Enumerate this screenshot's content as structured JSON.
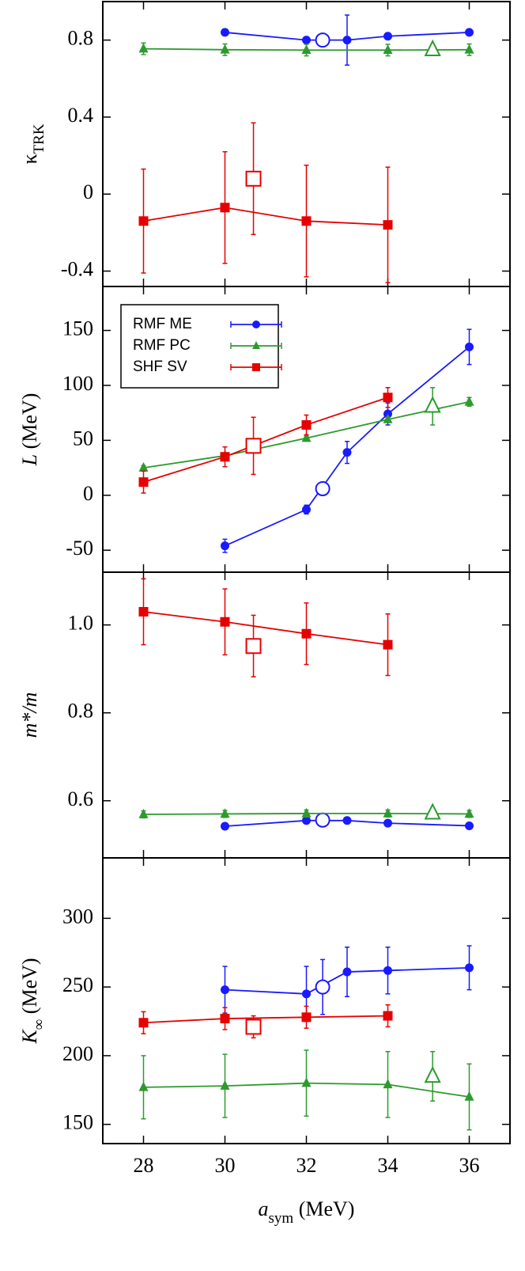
{
  "chart_data": [
    {
      "type": "line",
      "ylabel_parts": [
        {
          "text": "κ",
          "sub": false,
          "italic": false
        },
        {
          "text": "TRK",
          "sub": true,
          "italic": false
        }
      ],
      "xlim": [
        27,
        37
      ],
      "xticks": [
        28,
        30,
        32,
        34,
        36
      ],
      "ylim": [
        -0.48,
        1.0
      ],
      "yticks": [
        -0.4,
        0,
        0.4,
        0.8
      ],
      "series": [
        {
          "color": "#1a1aff",
          "marker": "circle",
          "x": [
            30,
            32,
            33,
            34,
            36
          ],
          "values": [
            0.84,
            0.8,
            0.8,
            0.82,
            0.84
          ],
          "errors": [
            0,
            0,
            0.13,
            0,
            0
          ],
          "open": {
            "x": 32.4,
            "y": 0.8,
            "error": 0
          }
        },
        {
          "color": "#2e9a2e",
          "marker": "triangle",
          "x": [
            28,
            30,
            32,
            34,
            36
          ],
          "values": [
            0.755,
            0.75,
            0.748,
            0.748,
            0.75
          ],
          "errors": [
            0.03,
            0.03,
            0.03,
            0.03,
            0.03
          ],
          "open": {
            "x": 35.1,
            "y": 0.75,
            "error": 0
          }
        },
        {
          "color": "#e60000",
          "marker": "square",
          "x": [
            28,
            30,
            32,
            34
          ],
          "values": [
            -0.14,
            -0.07,
            -0.14,
            -0.16
          ],
          "errors": [
            0.27,
            0.29,
            0.29,
            0.3
          ],
          "open": {
            "x": 30.7,
            "y": 0.08,
            "error": 0.29
          }
        }
      ]
    },
    {
      "type": "line",
      "ylabel_parts": [
        {
          "text": "L",
          "sub": false,
          "italic": true
        },
        {
          "text": "  (MeV)",
          "sub": false,
          "italic": false
        }
      ],
      "xlim": [
        27,
        37
      ],
      "xticks": [
        28,
        30,
        32,
        34,
        36
      ],
      "ylim": [
        -70,
        190
      ],
      "yticks": [
        -50,
        0,
        50,
        100,
        150
      ],
      "legend": "upper left",
      "series": [
        {
          "name": "RMF ME",
          "color": "#1a1aff",
          "marker": "circle",
          "x": [
            30,
            32,
            33,
            34,
            36
          ],
          "values": [
            -46,
            -13,
            39,
            74,
            135
          ],
          "errors": [
            6,
            4,
            10,
            10,
            16
          ],
          "open": {
            "x": 32.4,
            "y": 6,
            "error": 6
          }
        },
        {
          "name": "RMF PC",
          "color": "#2e9a2e",
          "marker": "triangle",
          "x": [
            28,
            30,
            32,
            34,
            36
          ],
          "values": [
            25,
            36,
            52,
            69,
            85
          ],
          "errors": [
            2,
            2,
            2,
            2,
            4
          ],
          "open": {
            "x": 35.1,
            "y": 81,
            "error": 17
          }
        },
        {
          "name": "SHF SV",
          "color": "#e60000",
          "marker": "square",
          "x": [
            28,
            30,
            32,
            34
          ],
          "values": [
            12,
            35,
            64,
            89
          ],
          "errors": [
            10,
            9,
            9,
            9
          ],
          "open": {
            "x": 30.7,
            "y": 45,
            "error": 26
          }
        }
      ]
    },
    {
      "type": "line",
      "ylabel_parts": [
        {
          "text": "m*/m",
          "sub": false,
          "italic": true
        }
      ],
      "xlim": [
        27,
        37
      ],
      "xticks": [
        28,
        30,
        32,
        34,
        36
      ],
      "ylim": [
        0.47,
        1.12
      ],
      "yticks": [
        0.6,
        0.8,
        {
          "value": 1,
          "label": "1.0"
        }
      ],
      "series": [
        {
          "color": "#1a1aff",
          "marker": "circle",
          "x": [
            30,
            32,
            33,
            34,
            36
          ],
          "values": [
            0.542,
            0.555,
            0.555,
            0.549,
            0.543
          ],
          "errors": [
            0,
            0,
            0,
            0,
            0
          ],
          "open": {
            "x": 32.4,
            "y": 0.556,
            "error": 0
          }
        },
        {
          "color": "#2e9a2e",
          "marker": "triangle",
          "x": [
            28,
            30,
            32,
            34,
            36
          ],
          "values": [
            0.569,
            0.57,
            0.571,
            0.571,
            0.57
          ],
          "errors": [
            0.008,
            0.008,
            0.008,
            0.008,
            0.008
          ],
          "open": {
            "x": 35.1,
            "y": 0.572,
            "error": 0
          }
        },
        {
          "color": "#e60000",
          "marker": "square",
          "x": [
            28,
            30,
            32,
            34
          ],
          "values": [
            1.03,
            1.007,
            0.98,
            0.955
          ],
          "errors": [
            0.075,
            0.075,
            0.07,
            0.07
          ],
          "open": {
            "x": 30.7,
            "y": 0.952,
            "error": 0.07
          }
        }
      ]
    },
    {
      "type": "line",
      "ylabel_parts": [
        {
          "text": "K",
          "sub": false,
          "italic": true
        },
        {
          "text": "∞",
          "sub": true,
          "italic": false
        },
        {
          "text": "  (MeV)",
          "sub": false,
          "italic": false
        }
      ],
      "xlabel_parts": [
        {
          "text": "a",
          "sub": false,
          "italic": true
        },
        {
          "text": "sym",
          "sub": true,
          "italic": false
        },
        {
          "text": " (MeV)",
          "sub": false,
          "italic": false
        }
      ],
      "xlim": [
        27,
        37
      ],
      "xticks": [
        28,
        30,
        32,
        34,
        36
      ],
      "xtick_labels": true,
      "ylim": [
        136,
        344
      ],
      "yticks": [
        150,
        200,
        250,
        300
      ],
      "series": [
        {
          "color": "#1a1aff",
          "marker": "circle",
          "x": [
            30,
            32,
            33,
            34,
            36
          ],
          "values": [
            248,
            245,
            261,
            262,
            264
          ],
          "errors": [
            17,
            20,
            18,
            17,
            16
          ],
          "open": {
            "x": 32.4,
            "y": 250,
            "error": 20
          }
        },
        {
          "color": "#e60000",
          "marker": "square",
          "x": [
            28,
            30,
            32,
            34
          ],
          "values": [
            224,
            227,
            228,
            229
          ],
          "errors": [
            8,
            8,
            8,
            8
          ],
          "open": {
            "x": 30.7,
            "y": 221,
            "error": 8
          }
        },
        {
          "color": "#2e9a2e",
          "marker": "triangle",
          "x": [
            28,
            30,
            32,
            34,
            36
          ],
          "values": [
            177,
            178,
            180,
            179,
            170
          ],
          "errors": [
            23,
            23,
            24,
            24,
            24
          ],
          "open": {
            "x": 35.1,
            "y": 185,
            "error": 18
          }
        }
      ]
    }
  ]
}
